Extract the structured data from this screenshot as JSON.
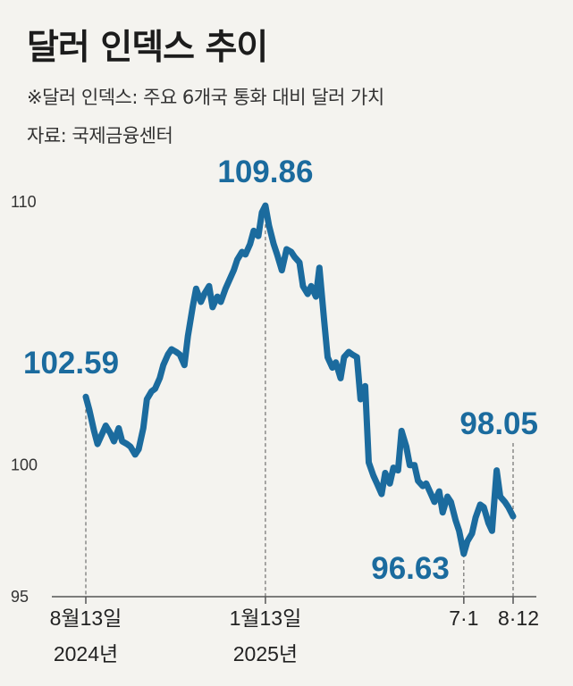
{
  "title": "달러 인덱스 추이",
  "subtitle": "※달러 인덱스: 주요 6개국 통화 대비 달러 가치",
  "source": "자료: 국제금융센터",
  "chart_data": {
    "type": "line",
    "title": "달러 인덱스 추이",
    "ylim": [
      95,
      110
    ],
    "y_ticks": [
      "95",
      "100",
      "110"
    ],
    "x_ticks": [
      {
        "line1": "8월13일",
        "line2": "2024년"
      },
      {
        "line1": "1월13일",
        "line2": "2025년"
      },
      {
        "line1": "7·1",
        "line2": ""
      },
      {
        "line1": "8·12",
        "line2": ""
      }
    ],
    "callouts": [
      {
        "label": "102.59",
        "date": "2024-08-13",
        "value": 102.59
      },
      {
        "label": "109.86",
        "date": "2025-01-13",
        "value": 109.86
      },
      {
        "label": "96.63",
        "date": "2025-07-01",
        "value": 96.63
      },
      {
        "label": "98.05",
        "date": "2025-08-12",
        "value": 98.05
      }
    ],
    "line_color": "#1b6b9e",
    "series": [
      {
        "dates": [
          "2024-08-13",
          "2024-08-16",
          "2024-08-20",
          "2024-08-23",
          "2024-08-27",
          "2024-08-30",
          "2024-09-03",
          "2024-09-06",
          "2024-09-10",
          "2024-09-13",
          "2024-09-17",
          "2024-09-20",
          "2024-09-24",
          "2024-09-27",
          "2024-10-01",
          "2024-10-04",
          "2024-10-08",
          "2024-10-11",
          "2024-10-15",
          "2024-10-18",
          "2024-10-22",
          "2024-10-25",
          "2024-10-29",
          "2024-11-01",
          "2024-11-05",
          "2024-11-08",
          "2024-11-12",
          "2024-11-15",
          "2024-11-19",
          "2024-11-22",
          "2024-11-26",
          "2024-11-29",
          "2024-12-03",
          "2024-12-06",
          "2024-12-10",
          "2024-12-13",
          "2024-12-17",
          "2024-12-20",
          "2024-12-24",
          "2024-12-27",
          "2024-12-31",
          "2025-01-03",
          "2025-01-07",
          "2025-01-10",
          "2025-01-13",
          "2025-01-16",
          "2025-01-20",
          "2025-01-23",
          "2025-01-27",
          "2025-01-31",
          "2025-02-04",
          "2025-02-07",
          "2025-02-11",
          "2025-02-14",
          "2025-02-18",
          "2025-02-21",
          "2025-02-25",
          "2025-02-28",
          "2025-03-04",
          "2025-03-07",
          "2025-03-11",
          "2025-03-14",
          "2025-03-18",
          "2025-03-21",
          "2025-03-25",
          "2025-03-28",
          "2025-04-01",
          "2025-04-04",
          "2025-04-08",
          "2025-04-11",
          "2025-04-15",
          "2025-04-18",
          "2025-04-22",
          "2025-04-25",
          "2025-04-29",
          "2025-05-02",
          "2025-05-06",
          "2025-05-09",
          "2025-05-13",
          "2025-05-16",
          "2025-05-20",
          "2025-05-23",
          "2025-05-27",
          "2025-05-30",
          "2025-06-03",
          "2025-06-06",
          "2025-06-10",
          "2025-06-13",
          "2025-06-17",
          "2025-06-20",
          "2025-06-24",
          "2025-06-27",
          "2025-07-01",
          "2025-07-04",
          "2025-07-08",
          "2025-07-11",
          "2025-07-15",
          "2025-07-18",
          "2025-07-22",
          "2025-07-25",
          "2025-07-29",
          "2025-08-01",
          "2025-08-05",
          "2025-08-08",
          "2025-08-12"
        ],
        "values": [
          102.59,
          102.1,
          101.3,
          100.8,
          101.2,
          101.5,
          101.2,
          100.9,
          101.4,
          100.9,
          100.8,
          100.7,
          100.4,
          100.6,
          101.4,
          102.5,
          102.8,
          102.9,
          103.3,
          103.8,
          104.2,
          104.4,
          104.3,
          104.2,
          103.8,
          104.9,
          106.0,
          106.7,
          106.2,
          106.5,
          106.8,
          106.0,
          106.4,
          106.2,
          106.7,
          107.0,
          107.4,
          107.8,
          108.1,
          108.0,
          108.4,
          108.9,
          108.7,
          109.6,
          109.86,
          109.1,
          108.4,
          108.0,
          107.4,
          108.2,
          108.1,
          107.9,
          107.7,
          106.8,
          106.5,
          106.8,
          106.4,
          107.5,
          105.5,
          104.1,
          103.7,
          103.9,
          103.3,
          104.1,
          104.3,
          104.2,
          104.1,
          102.5,
          103.0,
          100.1,
          99.6,
          99.3,
          98.9,
          99.7,
          99.3,
          99.9,
          99.8,
          101.3,
          100.7,
          100.0,
          100.0,
          99.4,
          99.2,
          99.3,
          98.9,
          98.6,
          99.0,
          98.2,
          98.8,
          98.6,
          97.9,
          97.5,
          96.63,
          97.1,
          97.4,
          98.0,
          98.5,
          98.4,
          97.8,
          97.5,
          99.8,
          98.8,
          98.6,
          98.4,
          98.05
        ]
      }
    ]
  }
}
